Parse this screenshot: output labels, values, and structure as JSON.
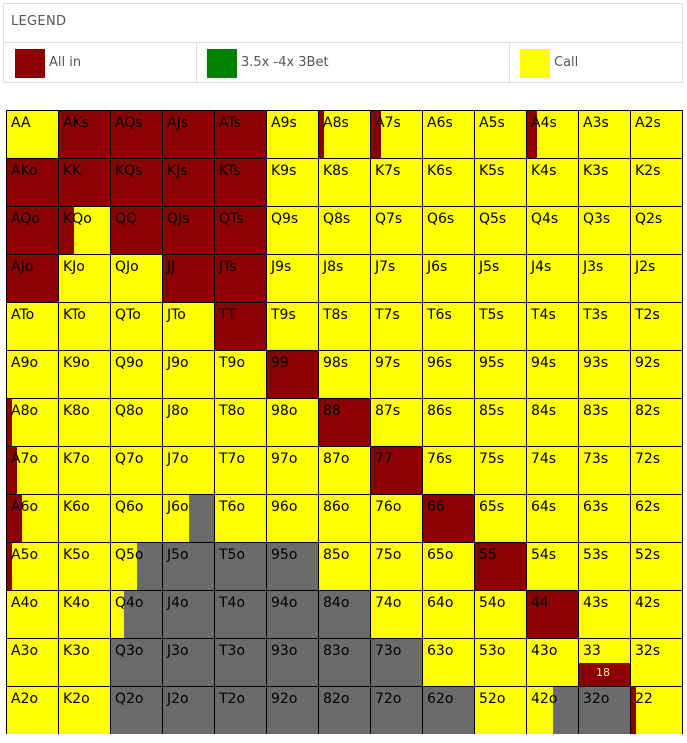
{
  "legend": {
    "title": "LEGEND",
    "items": [
      {
        "label": "All in",
        "color": "#8b0000"
      },
      {
        "label": "3.5x -4x 3Bet",
        "color": "#008000"
      },
      {
        "label": "Call",
        "color": "#ffff00"
      }
    ]
  },
  "chart_data": {
    "type": "heatmap",
    "colors": {
      "allin": "#8b0000",
      "raise3bet": "#008000",
      "call": "#ffff00",
      "fold": "#6b6b6b"
    },
    "rows": [
      [
        {
          "h": "AA",
          "a": 0,
          "c": 1
        },
        {
          "h": "AKs",
          "a": 1,
          "c": 0
        },
        {
          "h": "AQs",
          "a": 1,
          "c": 0
        },
        {
          "h": "AJs",
          "a": 1,
          "c": 0
        },
        {
          "h": "ATs",
          "a": 1,
          "c": 0
        },
        {
          "h": "A9s",
          "a": 0,
          "c": 1
        },
        {
          "h": "A8s",
          "a": 0.1,
          "c": 0.9
        },
        {
          "h": "A7s",
          "a": 0.2,
          "c": 0.8
        },
        {
          "h": "A6s",
          "a": 0,
          "c": 1
        },
        {
          "h": "A5s",
          "a": 0,
          "c": 1
        },
        {
          "h": "A4s",
          "a": 0.2,
          "c": 0.8
        },
        {
          "h": "A3s",
          "a": 0,
          "c": 1
        },
        {
          "h": "A2s",
          "a": 0,
          "c": 1
        }
      ],
      [
        {
          "h": "AKo",
          "a": 1,
          "c": 0
        },
        {
          "h": "KK",
          "a": 1,
          "c": 0
        },
        {
          "h": "KQs",
          "a": 1,
          "c": 0
        },
        {
          "h": "KJs",
          "a": 1,
          "c": 0
        },
        {
          "h": "KTs",
          "a": 1,
          "c": 0
        },
        {
          "h": "K9s",
          "a": 0,
          "c": 1
        },
        {
          "h": "K8s",
          "a": 0,
          "c": 1
        },
        {
          "h": "K7s",
          "a": 0,
          "c": 1
        },
        {
          "h": "K6s",
          "a": 0,
          "c": 1
        },
        {
          "h": "K5s",
          "a": 0,
          "c": 1
        },
        {
          "h": "K4s",
          "a": 0,
          "c": 1
        },
        {
          "h": "K3s",
          "a": 0,
          "c": 1
        },
        {
          "h": "K2s",
          "a": 0,
          "c": 1
        }
      ],
      [
        {
          "h": "AQo",
          "a": 1,
          "c": 0
        },
        {
          "h": "KQo",
          "a": 0.3,
          "c": 0.7
        },
        {
          "h": "QQ",
          "a": 1,
          "c": 0
        },
        {
          "h": "QJs",
          "a": 1,
          "c": 0
        },
        {
          "h": "QTs",
          "a": 1,
          "c": 0
        },
        {
          "h": "Q9s",
          "a": 0,
          "c": 1
        },
        {
          "h": "Q8s",
          "a": 0,
          "c": 1
        },
        {
          "h": "Q7s",
          "a": 0,
          "c": 1
        },
        {
          "h": "Q6s",
          "a": 0,
          "c": 1
        },
        {
          "h": "Q5s",
          "a": 0,
          "c": 1
        },
        {
          "h": "Q4s",
          "a": 0,
          "c": 1
        },
        {
          "h": "Q3s",
          "a": 0,
          "c": 1
        },
        {
          "h": "Q2s",
          "a": 0,
          "c": 1
        }
      ],
      [
        {
          "h": "AJo",
          "a": 1,
          "c": 0
        },
        {
          "h": "KJo",
          "a": 0,
          "c": 1
        },
        {
          "h": "QJo",
          "a": 0,
          "c": 1
        },
        {
          "h": "JJ",
          "a": 1,
          "c": 0
        },
        {
          "h": "JTs",
          "a": 1,
          "c": 0
        },
        {
          "h": "J9s",
          "a": 0,
          "c": 1
        },
        {
          "h": "J8s",
          "a": 0,
          "c": 1
        },
        {
          "h": "J7s",
          "a": 0,
          "c": 1
        },
        {
          "h": "J6s",
          "a": 0,
          "c": 1
        },
        {
          "h": "J5s",
          "a": 0,
          "c": 1
        },
        {
          "h": "J4s",
          "a": 0,
          "c": 1
        },
        {
          "h": "J3s",
          "a": 0,
          "c": 1
        },
        {
          "h": "J2s",
          "a": 0,
          "c": 1
        }
      ],
      [
        {
          "h": "ATo",
          "a": 0,
          "c": 1
        },
        {
          "h": "KTo",
          "a": 0,
          "c": 1
        },
        {
          "h": "QTo",
          "a": 0,
          "c": 1
        },
        {
          "h": "JTo",
          "a": 0,
          "c": 1
        },
        {
          "h": "TT",
          "a": 1,
          "c": 0
        },
        {
          "h": "T9s",
          "a": 0,
          "c": 1
        },
        {
          "h": "T8s",
          "a": 0,
          "c": 1
        },
        {
          "h": "T7s",
          "a": 0,
          "c": 1
        },
        {
          "h": "T6s",
          "a": 0,
          "c": 1
        },
        {
          "h": "T5s",
          "a": 0,
          "c": 1
        },
        {
          "h": "T4s",
          "a": 0,
          "c": 1
        },
        {
          "h": "T3s",
          "a": 0,
          "c": 1
        },
        {
          "h": "T2s",
          "a": 0,
          "c": 1
        }
      ],
      [
        {
          "h": "A9o",
          "a": 0,
          "c": 1
        },
        {
          "h": "K9o",
          "a": 0,
          "c": 1
        },
        {
          "h": "Q9o",
          "a": 0,
          "c": 1
        },
        {
          "h": "J9o",
          "a": 0,
          "c": 1
        },
        {
          "h": "T9o",
          "a": 0,
          "c": 1
        },
        {
          "h": "99",
          "a": 1,
          "c": 0
        },
        {
          "h": "98s",
          "a": 0,
          "c": 1
        },
        {
          "h": "97s",
          "a": 0,
          "c": 1
        },
        {
          "h": "96s",
          "a": 0,
          "c": 1
        },
        {
          "h": "95s",
          "a": 0,
          "c": 1
        },
        {
          "h": "94s",
          "a": 0,
          "c": 1
        },
        {
          "h": "93s",
          "a": 0,
          "c": 1
        },
        {
          "h": "92s",
          "a": 0,
          "c": 1
        }
      ],
      [
        {
          "h": "A8o",
          "a": 0.1,
          "c": 0.9
        },
        {
          "h": "K8o",
          "a": 0,
          "c": 1
        },
        {
          "h": "Q8o",
          "a": 0,
          "c": 1
        },
        {
          "h": "J8o",
          "a": 0,
          "c": 1
        },
        {
          "h": "T8o",
          "a": 0,
          "c": 1
        },
        {
          "h": "98o",
          "a": 0,
          "c": 1
        },
        {
          "h": "88",
          "a": 1,
          "c": 0
        },
        {
          "h": "87s",
          "a": 0,
          "c": 1
        },
        {
          "h": "86s",
          "a": 0,
          "c": 1
        },
        {
          "h": "85s",
          "a": 0,
          "c": 1
        },
        {
          "h": "84s",
          "a": 0,
          "c": 1
        },
        {
          "h": "83s",
          "a": 0,
          "c": 1
        },
        {
          "h": "82s",
          "a": 0,
          "c": 1
        }
      ],
      [
        {
          "h": "A7o",
          "a": 0.2,
          "c": 0.8
        },
        {
          "h": "K7o",
          "a": 0,
          "c": 1
        },
        {
          "h": "Q7o",
          "a": 0,
          "c": 1
        },
        {
          "h": "J7o",
          "a": 0,
          "c": 1
        },
        {
          "h": "T7o",
          "a": 0,
          "c": 1
        },
        {
          "h": "97o",
          "a": 0,
          "c": 1
        },
        {
          "h": "87o",
          "a": 0,
          "c": 1
        },
        {
          "h": "77",
          "a": 1,
          "c": 0
        },
        {
          "h": "76s",
          "a": 0,
          "c": 1
        },
        {
          "h": "75s",
          "a": 0,
          "c": 1
        },
        {
          "h": "74s",
          "a": 0,
          "c": 1
        },
        {
          "h": "73s",
          "a": 0,
          "c": 1
        },
        {
          "h": "72s",
          "a": 0,
          "c": 1
        }
      ],
      [
        {
          "h": "A6o",
          "a": 0.3,
          "c": 0.7
        },
        {
          "h": "K6o",
          "a": 0,
          "c": 1
        },
        {
          "h": "Q6o",
          "a": 0,
          "c": 1
        },
        {
          "h": "J6o",
          "a": 0,
          "c": 0.5
        },
        {
          "h": "T6o",
          "a": 0,
          "c": 1
        },
        {
          "h": "96o",
          "a": 0,
          "c": 1
        },
        {
          "h": "86o",
          "a": 0,
          "c": 1
        },
        {
          "h": "76o",
          "a": 0,
          "c": 1
        },
        {
          "h": "66",
          "a": 1,
          "c": 0
        },
        {
          "h": "65s",
          "a": 0,
          "c": 1
        },
        {
          "h": "64s",
          "a": 0,
          "c": 1
        },
        {
          "h": "63s",
          "a": 0,
          "c": 1
        },
        {
          "h": "62s",
          "a": 0,
          "c": 1
        }
      ],
      [
        {
          "h": "A5o",
          "a": 0.1,
          "c": 0.9
        },
        {
          "h": "K5o",
          "a": 0,
          "c": 1
        },
        {
          "h": "Q5o",
          "a": 0,
          "c": 0.5
        },
        {
          "h": "J5o",
          "a": 0,
          "c": 0
        },
        {
          "h": "T5o",
          "a": 0,
          "c": 0
        },
        {
          "h": "95o",
          "a": 0,
          "c": 0
        },
        {
          "h": "85o",
          "a": 0,
          "c": 1
        },
        {
          "h": "75o",
          "a": 0,
          "c": 1
        },
        {
          "h": "65o",
          "a": 0,
          "c": 1
        },
        {
          "h": "55",
          "a": 1,
          "c": 0
        },
        {
          "h": "54s",
          "a": 0,
          "c": 1
        },
        {
          "h": "53s",
          "a": 0,
          "c": 1
        },
        {
          "h": "52s",
          "a": 0,
          "c": 1
        }
      ],
      [
        {
          "h": "A4o",
          "a": 0,
          "c": 1
        },
        {
          "h": "K4o",
          "a": 0,
          "c": 1
        },
        {
          "h": "Q4o",
          "a": 0,
          "c": 0.25
        },
        {
          "h": "J4o",
          "a": 0,
          "c": 0
        },
        {
          "h": "T4o",
          "a": 0,
          "c": 0
        },
        {
          "h": "94o",
          "a": 0,
          "c": 0
        },
        {
          "h": "84o",
          "a": 0,
          "c": 0
        },
        {
          "h": "74o",
          "a": 0,
          "c": 1
        },
        {
          "h": "64o",
          "a": 0,
          "c": 1
        },
        {
          "h": "54o",
          "a": 0,
          "c": 1
        },
        {
          "h": "44",
          "a": 1,
          "c": 0
        },
        {
          "h": "43s",
          "a": 0,
          "c": 1
        },
        {
          "h": "42s",
          "a": 0,
          "c": 1
        }
      ],
      [
        {
          "h": "A3o",
          "a": 0,
          "c": 1
        },
        {
          "h": "K3o",
          "a": 0,
          "c": 1
        },
        {
          "h": "Q3o",
          "a": 0,
          "c": 0
        },
        {
          "h": "J3o",
          "a": 0,
          "c": 0
        },
        {
          "h": "T3o",
          "a": 0,
          "c": 0
        },
        {
          "h": "93o",
          "a": 0,
          "c": 0
        },
        {
          "h": "83o",
          "a": 0,
          "c": 0
        },
        {
          "h": "73o",
          "a": 0,
          "c": 0
        },
        {
          "h": "63o",
          "a": 0,
          "c": 1
        },
        {
          "h": "53o",
          "a": 0,
          "c": 1
        },
        {
          "h": "43o",
          "a": 0,
          "c": 1
        },
        {
          "h": "33",
          "a": 0,
          "c": 1,
          "count": "18"
        },
        {
          "h": "32s",
          "a": 0,
          "c": 1
        }
      ],
      [
        {
          "h": "A2o",
          "a": 0,
          "c": 1
        },
        {
          "h": "K2o",
          "a": 0,
          "c": 1
        },
        {
          "h": "Q2o",
          "a": 0,
          "c": 0
        },
        {
          "h": "J2o",
          "a": 0,
          "c": 0
        },
        {
          "h": "T2o",
          "a": 0,
          "c": 0
        },
        {
          "h": "92o",
          "a": 0,
          "c": 0
        },
        {
          "h": "82o",
          "a": 0,
          "c": 0
        },
        {
          "h": "72o",
          "a": 0,
          "c": 0
        },
        {
          "h": "62o",
          "a": 0,
          "c": 0
        },
        {
          "h": "52o",
          "a": 0,
          "c": 1
        },
        {
          "h": "42o",
          "a": 0,
          "c": 0.5
        },
        {
          "h": "32o",
          "a": 0,
          "c": 0
        },
        {
          "h": "22",
          "a": 0.1,
          "c": 0.9
        }
      ]
    ]
  }
}
